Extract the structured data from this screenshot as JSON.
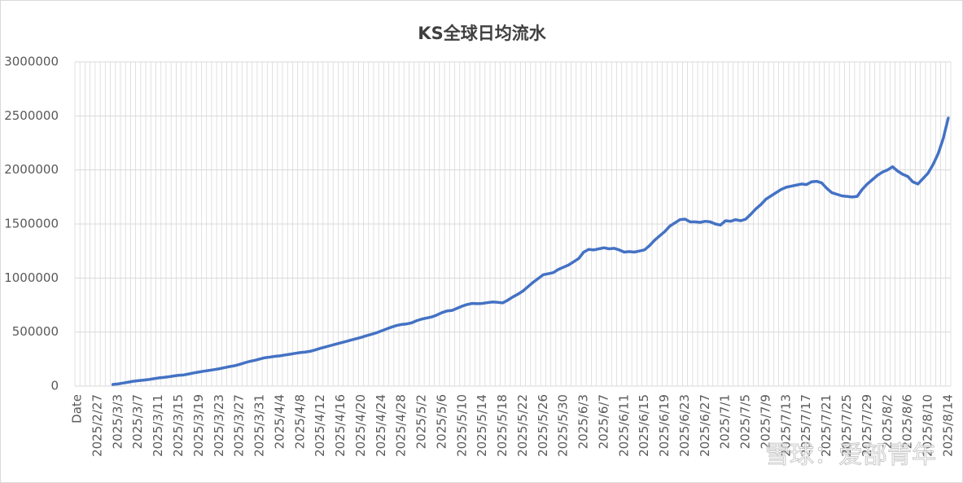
{
  "chart_data": {
    "type": "line",
    "title": "KS全球日均流水",
    "color": "#4472c4",
    "grid": true,
    "watermark": "雪球：爱部青年",
    "ylim": [
      0,
      3000000
    ],
    "yticks": [
      0,
      500000,
      1000000,
      1500000,
      2000000,
      2500000,
      3000000
    ],
    "categories": [
      "Date",
      null,
      null,
      null,
      "2025/2/27",
      null,
      null,
      null,
      "2025/3/3",
      null,
      null,
      null,
      "2025/3/7",
      null,
      null,
      null,
      "2025/3/11",
      null,
      null,
      null,
      "2025/3/15",
      null,
      null,
      null,
      "2025/3/19",
      null,
      null,
      null,
      "2025/3/23",
      null,
      null,
      null,
      "2025/3/27",
      null,
      null,
      null,
      "2025/3/31",
      null,
      null,
      null,
      "2025/4/4",
      null,
      null,
      null,
      "2025/4/8",
      null,
      null,
      null,
      "2025/4/12",
      null,
      null,
      null,
      "2025/4/16",
      null,
      null,
      null,
      "2025/4/20",
      null,
      null,
      null,
      "2025/4/24",
      null,
      null,
      null,
      "2025/4/28",
      null,
      null,
      null,
      "2025/5/2",
      null,
      null,
      null,
      "2025/5/6",
      null,
      null,
      null,
      "2025/5/10",
      null,
      null,
      null,
      "2025/5/14",
      null,
      null,
      null,
      "2025/5/18",
      null,
      null,
      null,
      "2025/5/22",
      null,
      null,
      null,
      "2025/5/26",
      null,
      null,
      null,
      "2025/5/30",
      null,
      null,
      null,
      "2025/6/3",
      null,
      null,
      null,
      "2025/6/7",
      null,
      null,
      null,
      "2025/6/11",
      null,
      null,
      null,
      "2025/6/15",
      null,
      null,
      null,
      "2025/6/19",
      null,
      null,
      null,
      "2025/6/23",
      null,
      null,
      null,
      "2025/6/27",
      null,
      null,
      null,
      "2025/7/1",
      null,
      null,
      null,
      "2025/7/5",
      null,
      null,
      null,
      "2025/7/9",
      null,
      null,
      null,
      "2025/7/13",
      null,
      null,
      null,
      "2025/7/17",
      null,
      null,
      null,
      "2025/7/21",
      null,
      null,
      null,
      "2025/7/25",
      null,
      null,
      null,
      "2025/7/29",
      null,
      null,
      null,
      "2025/8/2",
      null,
      null,
      null,
      "2025/8/6",
      null,
      null,
      null,
      "2025/8/10",
      null,
      null,
      null,
      "2025/8/14"
    ],
    "values": [
      null,
      null,
      null,
      null,
      null,
      null,
      null,
      15000,
      20000,
      28000,
      36000,
      44000,
      50000,
      55000,
      60000,
      68000,
      75000,
      80000,
      86000,
      93000,
      100000,
      103000,
      112000,
      122000,
      130000,
      138000,
      145000,
      152000,
      160000,
      170000,
      180000,
      188000,
      200000,
      215000,
      228000,
      238000,
      250000,
      262000,
      268000,
      275000,
      280000,
      288000,
      295000,
      303000,
      310000,
      315000,
      322000,
      335000,
      350000,
      362000,
      375000,
      388000,
      400000,
      412000,
      425000,
      438000,
      450000,
      465000,
      478000,
      492000,
      510000,
      528000,
      545000,
      560000,
      570000,
      575000,
      585000,
      605000,
      620000,
      630000,
      640000,
      658000,
      680000,
      695000,
      700000,
      720000,
      740000,
      755000,
      765000,
      762000,
      765000,
      772000,
      778000,
      775000,
      770000,
      795000,
      825000,
      850000,
      880000,
      920000,
      960000,
      995000,
      1030000,
      1040000,
      1050000,
      1080000,
      1100000,
      1120000,
      1150000,
      1180000,
      1240000,
      1265000,
      1260000,
      1270000,
      1280000,
      1270000,
      1275000,
      1260000,
      1240000,
      1245000,
      1240000,
      1250000,
      1260000,
      1300000,
      1350000,
      1390000,
      1430000,
      1480000,
      1510000,
      1540000,
      1545000,
      1520000,
      1520000,
      1515000,
      1525000,
      1520000,
      1500000,
      1490000,
      1530000,
      1525000,
      1540000,
      1530000,
      1545000,
      1590000,
      1640000,
      1680000,
      1730000,
      1760000,
      1790000,
      1820000,
      1840000,
      1850000,
      1860000,
      1870000,
      1865000,
      1890000,
      1895000,
      1880000,
      1830000,
      1790000,
      1775000,
      1760000,
      1755000,
      1750000,
      1755000,
      1820000,
      1870000,
      1910000,
      1950000,
      1980000,
      2000000,
      2030000,
      1990000,
      1960000,
      1940000,
      1890000,
      1870000,
      1920000,
      1970000,
      2050000,
      2150000,
      2290000,
      2480000
    ]
  }
}
